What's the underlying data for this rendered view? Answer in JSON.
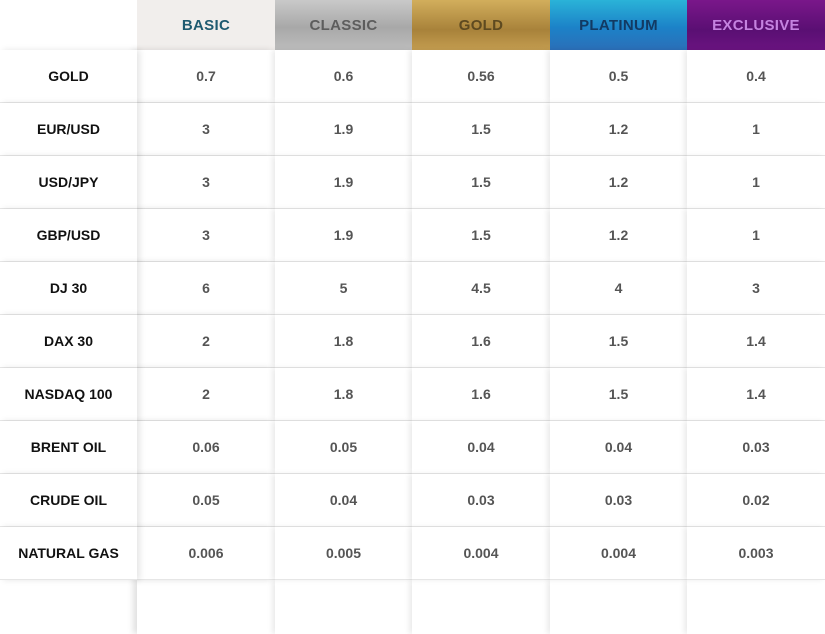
{
  "tiers": [
    "BASIC",
    "CLASSIC",
    "GOLD",
    "PLATINUM",
    "EXCLUSIVE"
  ],
  "rows": [
    {
      "instrument": "GOLD",
      "values": [
        "0.7",
        "0.6",
        "0.56",
        "0.5",
        "0.4"
      ]
    },
    {
      "instrument": "EUR/USD",
      "values": [
        "3",
        "1.9",
        "1.5",
        "1.2",
        "1"
      ]
    },
    {
      "instrument": "USD/JPY",
      "values": [
        "3",
        "1.9",
        "1.5",
        "1.2",
        "1"
      ]
    },
    {
      "instrument": "GBP/USD",
      "values": [
        "3",
        "1.9",
        "1.5",
        "1.2",
        "1"
      ]
    },
    {
      "instrument": "DJ 30",
      "values": [
        "6",
        "5",
        "4.5",
        "4",
        "3"
      ]
    },
    {
      "instrument": "DAX 30",
      "values": [
        "2",
        "1.8",
        "1.6",
        "1.5",
        "1.4"
      ]
    },
    {
      "instrument": "NASDAQ 100",
      "values": [
        "2",
        "1.8",
        "1.6",
        "1.5",
        "1.4"
      ]
    },
    {
      "instrument": "BRENT OIL",
      "values": [
        "0.06",
        "0.05",
        "0.04",
        "0.04",
        "0.03"
      ]
    },
    {
      "instrument": "CRUDE OIL",
      "values": [
        "0.05",
        "0.04",
        "0.03",
        "0.03",
        "0.02"
      ]
    },
    {
      "instrument": "NATURAL GAS",
      "values": [
        "0.006",
        "0.005",
        "0.004",
        "0.004",
        "0.003"
      ]
    }
  ],
  "colors": {
    "basic_text": "#1e5a70",
    "classic_text": "#5d5d5d",
    "gold_text": "#5e4a20",
    "platinum_text": "#123a63",
    "exclusive_text": "#c583e0"
  }
}
